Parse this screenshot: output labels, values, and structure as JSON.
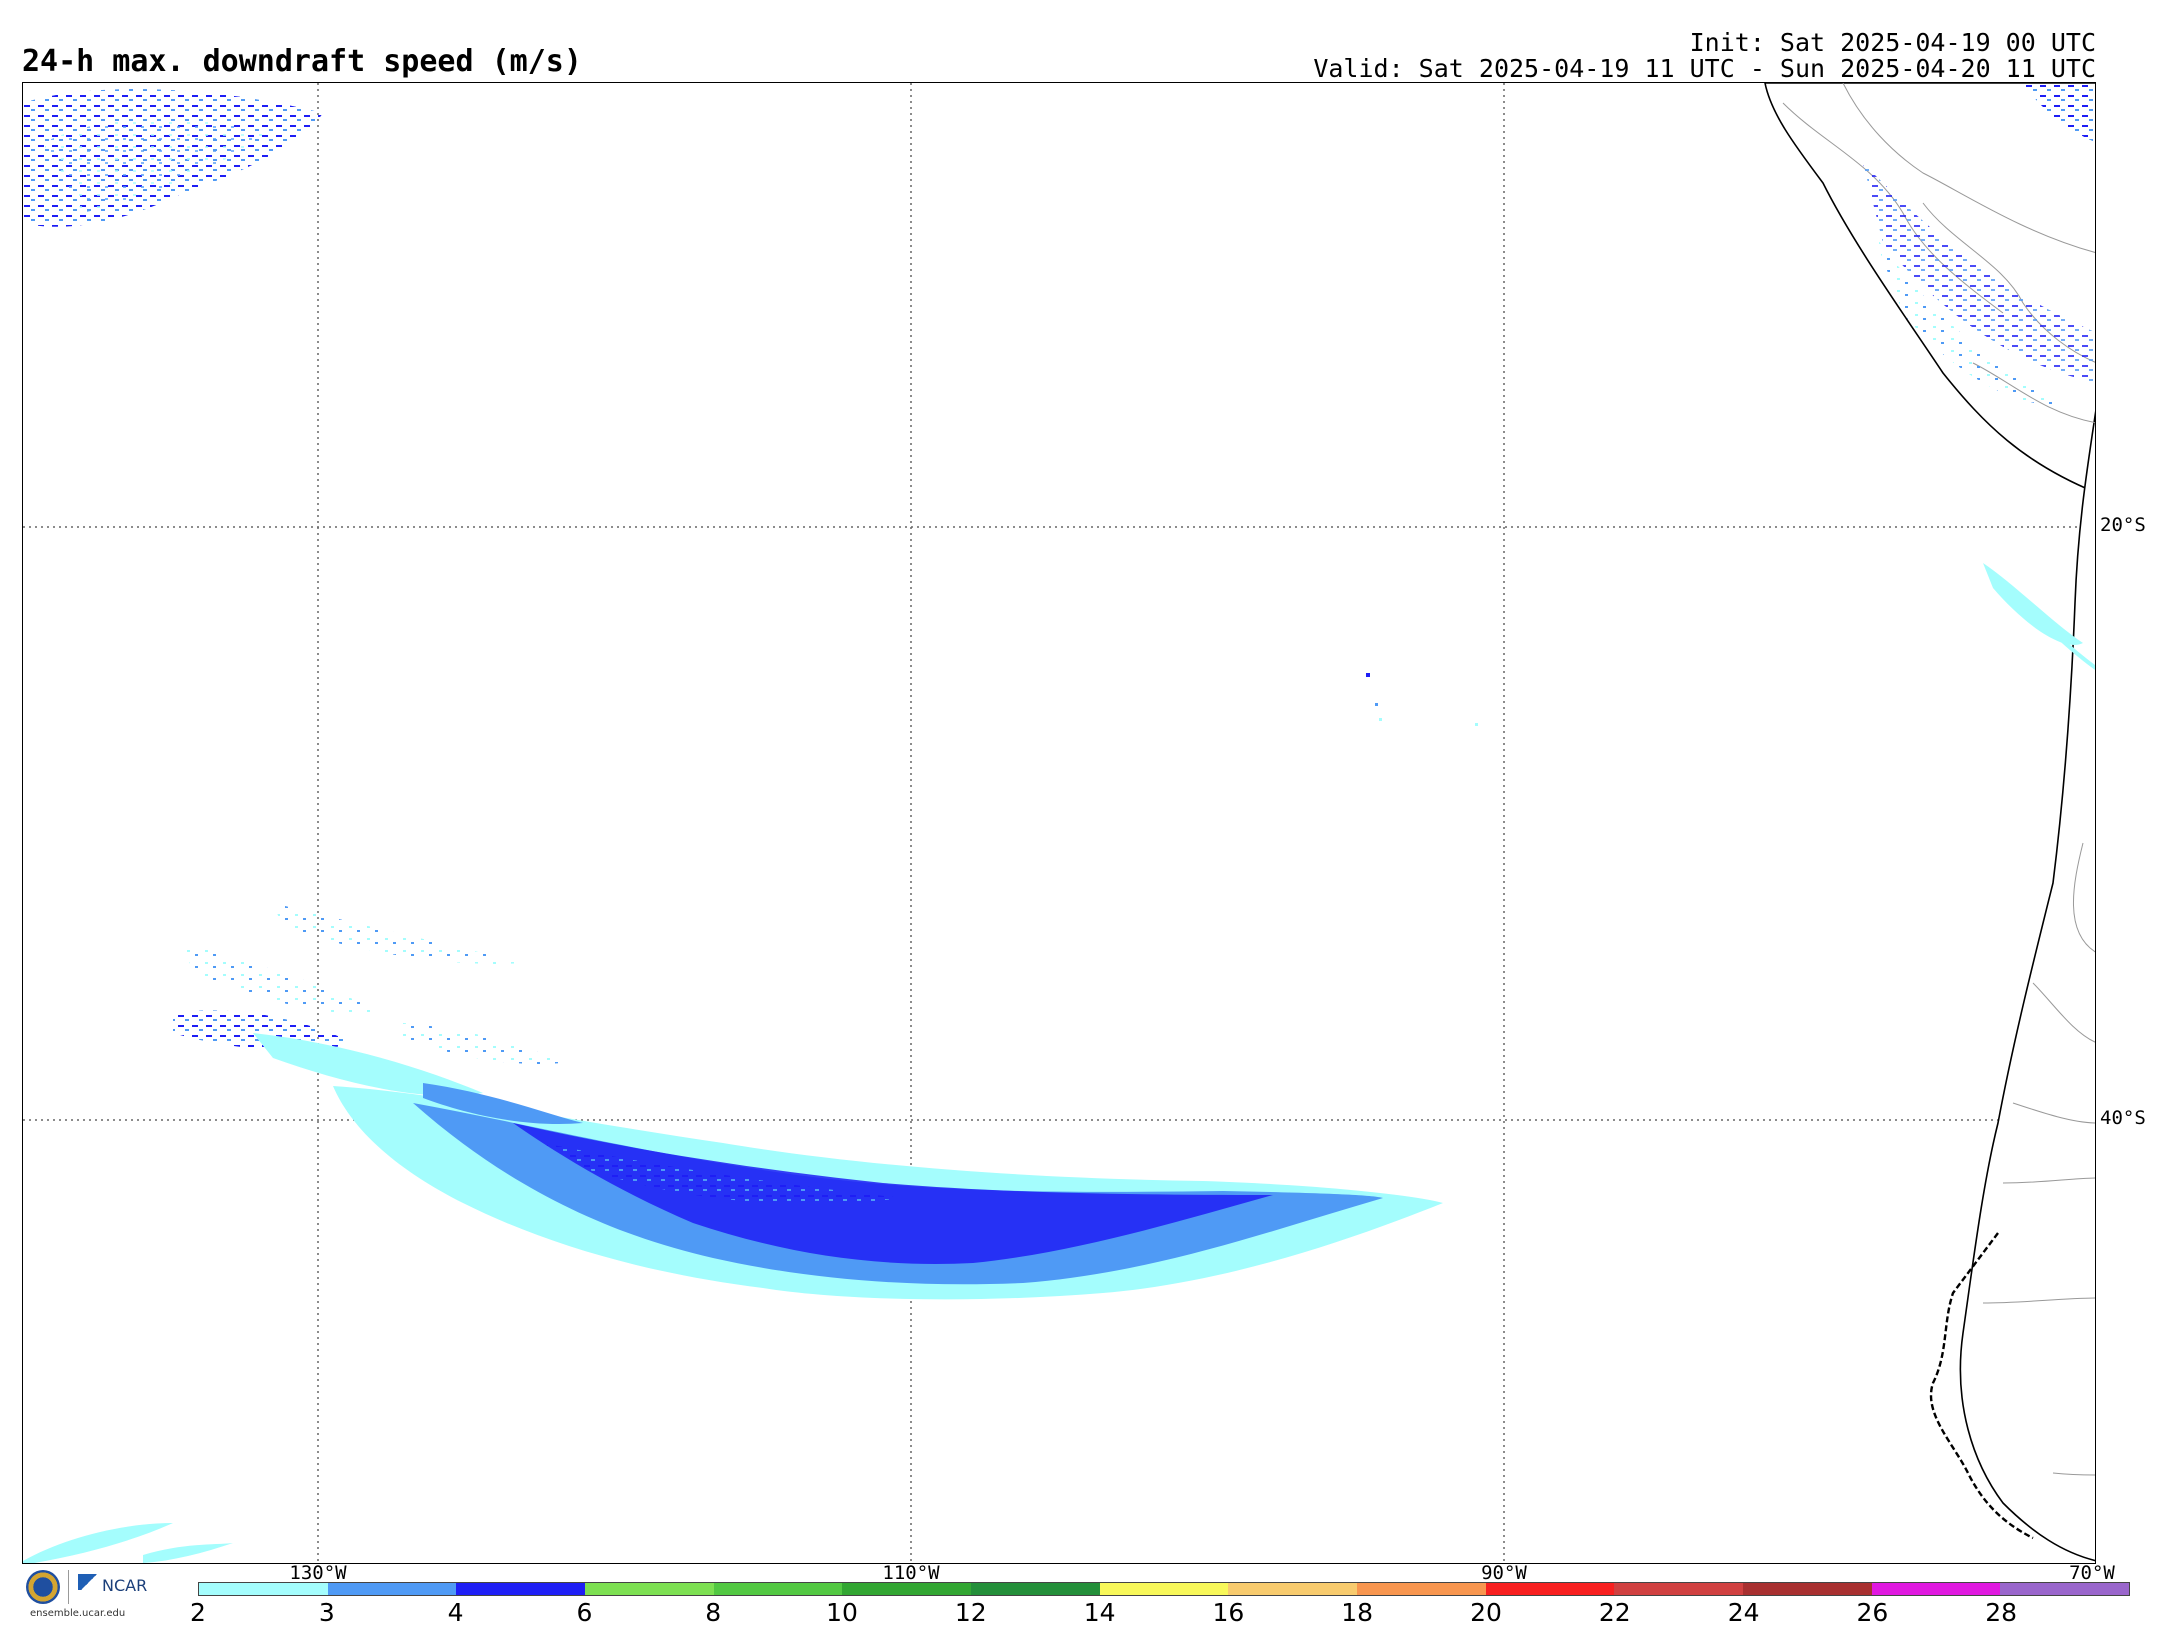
{
  "title": "24-h max. downdraft speed (m/s)",
  "init": "Init: Sat 2025-04-19 00 UTC",
  "valid": "Valid: Sat 2025-04-19 11 UTC - Sun 2025-04-20 11 UTC",
  "lat_labels": [
    "20°S",
    "40°S"
  ],
  "lon_labels": [
    "130°W",
    "110°W",
    "90°W",
    "70°W"
  ],
  "colorbar": {
    "ticks": [
      "2",
      "3",
      "4",
      "6",
      "8",
      "10",
      "12",
      "14",
      "16",
      "18",
      "20",
      "22",
      "24",
      "26",
      "28"
    ],
    "colors": [
      "#a4fdfd",
      "#4f9af5",
      "#1e1ef5",
      "#7de052",
      "#52c842",
      "#32a632",
      "#248f3a",
      "#f8f85a",
      "#f8cb6e",
      "#f8964f",
      "#f82020",
      "#d04040",
      "#a83030",
      "#e018e0",
      "#9a66cc"
    ]
  },
  "logo": {
    "ncar": "NCAR",
    "url": "ensemble.ucar.edu"
  },
  "icons": [
    "nsf-logo-icon",
    "ncar-logo-icon"
  ]
}
